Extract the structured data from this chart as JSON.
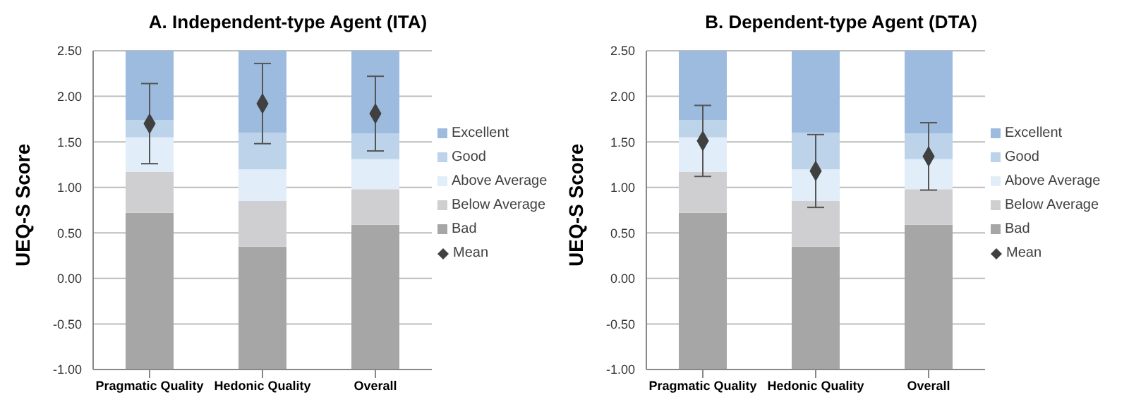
{
  "chart_data": [
    {
      "type": "bar",
      "title": "A. Independent-type Agent (ITA)",
      "ylabel": "UEQ-S Score",
      "categories": [
        "Pragmatic Quality",
        "Hedonic Quality",
        "Overall"
      ],
      "ylim": [
        -1,
        2.5
      ],
      "yticks": [
        {
          "value": -1,
          "label": "-1.00"
        },
        {
          "value": -0.5,
          "label": "-0.50"
        },
        {
          "value": 0,
          "label": "0.00"
        },
        {
          "value": 0.5,
          "label": "0.50"
        },
        {
          "value": 1,
          "label": "1.00"
        },
        {
          "value": 1.5,
          "label": "1.50"
        },
        {
          "value": 2,
          "label": "2.00"
        },
        {
          "value": 2.5,
          "label": "2.50"
        }
      ],
      "grid": "y",
      "legend": "right",
      "series": [
        {
          "name": "Bad",
          "color": "#a6a6a6",
          "base": [
            -1,
            -1,
            -1
          ],
          "values": [
            1.72,
            1.35,
            1.59
          ]
        },
        {
          "name": "Below Average",
          "color": "#cfcfd2",
          "base": [
            0.72,
            0.35,
            0.59
          ],
          "values": [
            0.45,
            0.5,
            0.39
          ]
        },
        {
          "name": "Above Average",
          "color": "#e1edf8",
          "base": [
            1.17,
            0.85,
            0.98
          ],
          "values": [
            0.38,
            0.35,
            0.33
          ]
        },
        {
          "name": "Good",
          "color": "#bcd3ea",
          "base": [
            1.55,
            1.2,
            1.31
          ],
          "values": [
            0.19,
            0.4,
            0.28
          ]
        },
        {
          "name": "Excellent",
          "color": "#9dbbdf",
          "base": [
            1.74,
            1.6,
            1.59
          ],
          "values": [
            0.76,
            0.9,
            0.91
          ]
        },
        {
          "name": "Mean",
          "type": "scatter",
          "color": "#404040",
          "marker": "diamond",
          "x": [
            "Pragmatic Quality",
            "Hedonic Quality",
            "Overall"
          ],
          "values": [
            1.7,
            1.92,
            1.81
          ],
          "errors": [
            0.44,
            0.44,
            0.41
          ]
        }
      ]
    },
    {
      "type": "bar",
      "title": "B. Dependent-type Agent (DTA)",
      "ylabel": "UEQ-S Score",
      "categories": [
        "Pragmatic Quality",
        "Hedonic Quality",
        "Overall"
      ],
      "ylim": [
        -1,
        2.5
      ],
      "yticks": [
        {
          "value": -1,
          "label": "-1.00"
        },
        {
          "value": -0.5,
          "label": "-0.50"
        },
        {
          "value": 0,
          "label": "0.00"
        },
        {
          "value": 0.5,
          "label": "0.50"
        },
        {
          "value": 1,
          "label": "1.00"
        },
        {
          "value": 1.5,
          "label": "1.50"
        },
        {
          "value": 2,
          "label": "2.00"
        },
        {
          "value": 2.5,
          "label": "2.50"
        }
      ],
      "grid": "y",
      "legend": "right",
      "series": [
        {
          "name": "Bad",
          "color": "#a6a6a6",
          "base": [
            -1,
            -1,
            -1
          ],
          "values": [
            1.72,
            1.35,
            1.59
          ]
        },
        {
          "name": "Below Average",
          "color": "#cfcfd2",
          "base": [
            0.72,
            0.35,
            0.59
          ],
          "values": [
            0.45,
            0.5,
            0.39
          ]
        },
        {
          "name": "Above Average",
          "color": "#e1edf8",
          "base": [
            1.17,
            0.85,
            0.98
          ],
          "values": [
            0.38,
            0.35,
            0.33
          ]
        },
        {
          "name": "Good",
          "color": "#bcd3ea",
          "base": [
            1.55,
            1.2,
            1.31
          ],
          "values": [
            0.19,
            0.4,
            0.28
          ]
        },
        {
          "name": "Excellent",
          "color": "#9dbbdf",
          "base": [
            1.74,
            1.6,
            1.59
          ],
          "values": [
            0.76,
            0.9,
            0.91
          ]
        },
        {
          "name": "Mean",
          "type": "scatter",
          "color": "#404040",
          "marker": "diamond",
          "x": [
            "Pragmatic Quality",
            "Hedonic Quality",
            "Overall"
          ],
          "values": [
            1.51,
            1.18,
            1.34
          ],
          "errors": [
            0.39,
            0.4,
            0.37
          ]
        }
      ]
    }
  ]
}
